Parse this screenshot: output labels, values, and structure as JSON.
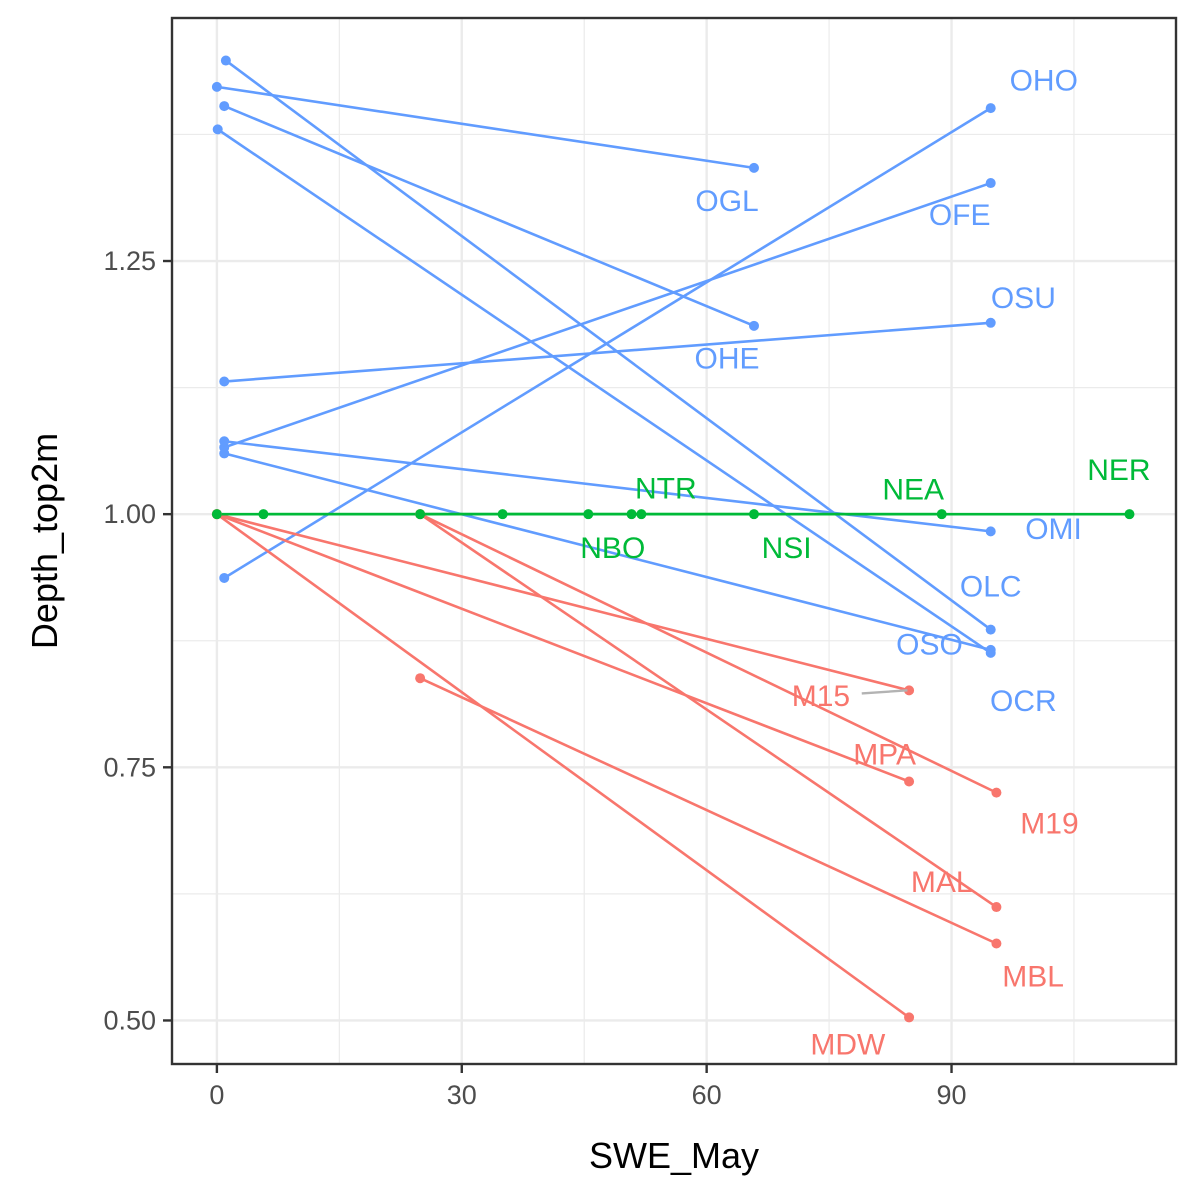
{
  "chart_data": {
    "type": "line",
    "xlabel": "SWE_May",
    "ylabel": "Depth_top2m",
    "xlim": [
      -5.5,
      117.5
    ],
    "ylim": [
      0.457,
      1.49
    ],
    "x_ticks": [
      0,
      30,
      60,
      90
    ],
    "x_tick_labels": [
      "0",
      "30",
      "60",
      "90"
    ],
    "x_minor": [
      15,
      45,
      75,
      105
    ],
    "y_ticks": [
      0.5,
      0.75,
      1.0,
      1.25
    ],
    "y_tick_labels": [
      "0.50",
      "0.75",
      "1.00",
      "1.25"
    ],
    "y_minor": [
      0.625,
      0.875,
      1.125,
      1.375
    ],
    "grid": true,
    "legend": "none",
    "colors": {
      "O": "#619CFF",
      "M": "#F8766D",
      "N": "#00BA38",
      "grid": "#ebebeb",
      "border": "#333333",
      "segment": "#b3b3b3"
    },
    "series": [
      {
        "group": "O",
        "name": "OGL",
        "points": [
          [
            0,
            1.422
          ],
          [
            65.8,
            1.342
          ]
        ]
      },
      {
        "group": "O",
        "name": "OHE",
        "points": [
          [
            0.9,
            1.403
          ],
          [
            65.8,
            1.186
          ]
        ]
      },
      {
        "group": "O",
        "name": "OHO",
        "points": [
          [
            0.9,
            0.937
          ],
          [
            94.8,
            1.401
          ]
        ]
      },
      {
        "group": "O",
        "name": "OFE",
        "points": [
          [
            0.9,
            1.066
          ],
          [
            94.8,
            1.327
          ]
        ]
      },
      {
        "group": "O",
        "name": "OSU",
        "points": [
          [
            0.9,
            1.131
          ],
          [
            94.8,
            1.189
          ]
        ]
      },
      {
        "group": "O",
        "name": "OMI",
        "points": [
          [
            0.9,
            1.072
          ],
          [
            94.8,
            0.983
          ]
        ]
      },
      {
        "group": "O",
        "name": "OLC",
        "points": [
          [
            1.1,
            1.448
          ],
          [
            94.8,
            0.886
          ]
        ]
      },
      {
        "group": "O",
        "name": "OCR",
        "points": [
          [
            0.1,
            1.38
          ],
          [
            94.8,
            0.863
          ]
        ]
      },
      {
        "group": "O",
        "name": "OSO",
        "points": [
          [
            0.9,
            1.06
          ],
          [
            94.8,
            0.866
          ]
        ]
      },
      {
        "group": "M",
        "name": "M15",
        "points": [
          [
            0,
            1.0
          ],
          [
            84.8,
            0.826
          ]
        ]
      },
      {
        "group": "M",
        "name": "MPA",
        "points": [
          [
            0,
            1.0
          ],
          [
            84.8,
            0.736
          ]
        ]
      },
      {
        "group": "M",
        "name": "M19",
        "points": [
          [
            24.9,
            1.0
          ],
          [
            95.5,
            0.725
          ]
        ]
      },
      {
        "group": "M",
        "name": "MAL",
        "points": [
          [
            24.9,
            1.0
          ],
          [
            95.5,
            0.612
          ]
        ]
      },
      {
        "group": "M",
        "name": "MBL",
        "points": [
          [
            24.9,
            0.838
          ],
          [
            95.5,
            0.576
          ]
        ]
      },
      {
        "group": "M",
        "name": "MDW",
        "points": [
          [
            0,
            1.0
          ],
          [
            84.8,
            0.503
          ]
        ]
      },
      {
        "group": "N",
        "name": "NBO",
        "points": [
          [
            0,
            1.0
          ],
          [
            45.5,
            1.0
          ]
        ]
      },
      {
        "group": "N",
        "name": "NTR",
        "points": [
          [
            5.7,
            1.0
          ],
          [
            52.0,
            1.0
          ]
        ]
      },
      {
        "group": "N",
        "name": "NSI",
        "points": [
          [
            35.0,
            1.0
          ],
          [
            65.8,
            1.0
          ]
        ]
      },
      {
        "group": "N",
        "name": "NEA",
        "points": [
          [
            24.9,
            1.0
          ],
          [
            88.8,
            1.0
          ]
        ]
      },
      {
        "group": "N",
        "name": "NER",
        "points": [
          [
            50.8,
            1.0
          ],
          [
            111.8,
            1.0
          ]
        ]
      }
    ],
    "labels": [
      {
        "text": "OHO",
        "group": "O",
        "x": 101.3,
        "y": 1.428
      },
      {
        "text": "OGL",
        "group": "O",
        "x": 62.5,
        "y": 1.309
      },
      {
        "text": "OFE",
        "group": "O",
        "x": 91.0,
        "y": 1.295
      },
      {
        "text": "OSU",
        "group": "O",
        "x": 98.8,
        "y": 1.213
      },
      {
        "text": "OHE",
        "group": "O",
        "x": 62.5,
        "y": 1.153
      },
      {
        "text": "OMI",
        "group": "O",
        "x": 102.5,
        "y": 0.985
      },
      {
        "text": "OLC",
        "group": "O",
        "x": 94.8,
        "y": 0.928
      },
      {
        "text": "OSO",
        "group": "O",
        "x": 87.3,
        "y": 0.871
      },
      {
        "text": "OCR",
        "group": "O",
        "x": 98.8,
        "y": 0.815
      },
      {
        "text": "NTR",
        "group": "N",
        "x": 55.0,
        "y": 1.025
      },
      {
        "text": "NEA",
        "group": "N",
        "x": 85.3,
        "y": 1.024
      },
      {
        "text": "NER",
        "group": "N",
        "x": 110.5,
        "y": 1.043
      },
      {
        "text": "NBO",
        "group": "N",
        "x": 48.5,
        "y": 0.966
      },
      {
        "text": "NSI",
        "group": "N",
        "x": 69.8,
        "y": 0.966
      },
      {
        "text": "M15",
        "group": "M",
        "x": 74.0,
        "y": 0.82
      },
      {
        "text": "MPA",
        "group": "M",
        "x": 81.8,
        "y": 0.762
      },
      {
        "text": "M19",
        "group": "M",
        "x": 102.0,
        "y": 0.694
      },
      {
        "text": "MAL",
        "group": "M",
        "x": 88.8,
        "y": 0.636
      },
      {
        "text": "MBL",
        "group": "M",
        "x": 100.0,
        "y": 0.543
      },
      {
        "text": "MDW",
        "group": "M",
        "x": 77.3,
        "y": 0.476
      }
    ],
    "leaders": [
      {
        "from": [
          79.0,
          0.823
        ],
        "to": [
          84.6,
          0.826
        ]
      }
    ]
  }
}
